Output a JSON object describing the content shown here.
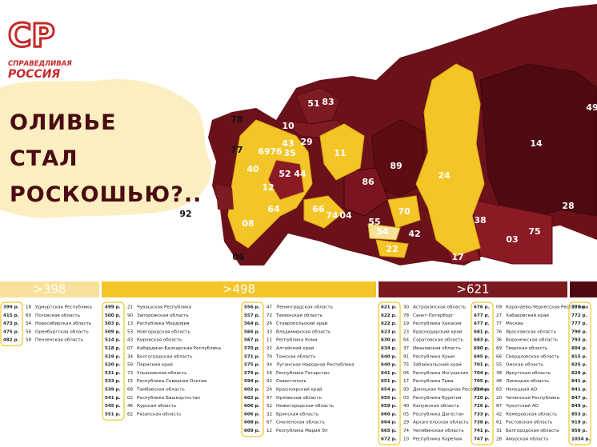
{
  "logo": {
    "mark": "СР",
    "line1": "СПРАВЕДЛИВАЯ",
    "line2": "РОССИЯ"
  },
  "headline": [
    "ОЛИВЬЕ",
    "СТАЛ",
    "РОСКОШЬЮ?.."
  ],
  "map": {
    "labels": [
      "51",
      "10",
      "29",
      "83",
      "78",
      "77",
      "69",
      "76",
      "35",
      "11",
      "89",
      "86",
      "24",
      "14",
      "49",
      "28",
      "92",
      "06",
      "74",
      "04",
      "55",
      "70",
      "54",
      "42",
      "22",
      "38",
      "03",
      "75",
      "17",
      "66",
      "44",
      "52",
      "40",
      "08",
      "64",
      "43",
      "12"
    ]
  },
  "groups": [
    {
      "header": ">398",
      "color": "#f7e19a",
      "columns": [
        [
          {
            "price": "399 р.",
            "code": "18",
            "name": "Удмуртская Республика"
          },
          {
            "price": "415 р.",
            "code": "60",
            "name": "Псковская область"
          },
          {
            "price": "473 р.",
            "code": "54",
            "name": "Новосибирская область"
          },
          {
            "price": "475 р.",
            "code": "56",
            "name": "Оренбургская область"
          },
          {
            "price": "482 р.",
            "code": "58",
            "name": "Пензенская область"
          }
        ]
      ]
    },
    {
      "header": ">498",
      "color": "#f3c526",
      "columns": [
        [
          {
            "price": "499 р.",
            "code": "21",
            "name": "Чувашская Республика"
          },
          {
            "price": "500 р.",
            "code": "90",
            "name": "Запорожская область"
          },
          {
            "price": "503 р.",
            "code": "13",
            "name": "Республика Мордовия"
          },
          {
            "price": "509 р.",
            "code": "53",
            "name": "Новгородская область"
          },
          {
            "price": "514 р.",
            "code": "43",
            "name": "Кировская область"
          },
          {
            "price": "518 р.",
            "code": "07",
            "name": "Кабардино-Балкарская Республика"
          },
          {
            "price": "519 р.",
            "code": "34",
            "name": "Волгоградская область"
          },
          {
            "price": "520 р.",
            "code": "59",
            "name": "Пермский край"
          },
          {
            "price": "531 р.",
            "code": "73",
            "name": "Ульяновская область"
          },
          {
            "price": "533 р.",
            "code": "15",
            "name": "Республика Северная Осетия"
          },
          {
            "price": "539 р.",
            "code": "68",
            "name": "Тамбовская область"
          },
          {
            "price": "541 р.",
            "code": "02",
            "name": "Республика Башкортостан"
          },
          {
            "price": "545 р.",
            "code": "46",
            "name": "Курская область"
          },
          {
            "price": "551 р.",
            "code": "62",
            "name": "Рязанская область"
          }
        ],
        [
          {
            "price": "556 р.",
            "code": "47",
            "name": "Ленинградская область"
          },
          {
            "price": "557 р.",
            "code": "72",
            "name": "Тюменская область"
          },
          {
            "price": "564 р.",
            "code": "26",
            "name": "Ставропольский край"
          },
          {
            "price": "566 р.",
            "code": "33",
            "name": "Владимирская область"
          },
          {
            "price": "567 р.",
            "code": "11",
            "name": "Республика Коми"
          },
          {
            "price": "570 р.",
            "code": "22",
            "name": "Алтайский край"
          },
          {
            "price": "571 р.",
            "code": "70",
            "name": "Томская область"
          },
          {
            "price": "575 р.",
            "code": "94",
            "name": "Луганская Народная Республика"
          },
          {
            "price": "579 р.",
            "code": "16",
            "name": "Республика Татарстан"
          },
          {
            "price": "594 р.",
            "code": "92",
            "name": "Севастополь"
          },
          {
            "price": "602 р.",
            "code": "24",
            "name": "Красноярский край"
          },
          {
            "price": "602 р.",
            "code": "57",
            "name": "Орловская область"
          },
          {
            "price": "606 р.",
            "code": "52",
            "name": "Нижегородская область"
          },
          {
            "price": "606 р.",
            "code": "32",
            "name": "Брянская область"
          },
          {
            "price": "608 р.",
            "code": "67",
            "name": "Смоленская область"
          },
          {
            "price": "609 р.",
            "code": "12",
            "name": "Республика Марий Эл"
          }
        ]
      ]
    },
    {
      "header": ">621",
      "color": "#7a1a20",
      "columns": [
        [
          {
            "price": "621 р.",
            "code": "30",
            "name": "Астраханская область"
          },
          {
            "price": "622 р.",
            "code": "78",
            "name": "Санкт-Петербург"
          },
          {
            "price": "622 р.",
            "code": "19",
            "name": "Республика Хакасия"
          },
          {
            "price": "623 р.",
            "code": "23",
            "name": "Краснодарский край"
          },
          {
            "price": "630 р.",
            "code": "64",
            "name": "Саратовская область"
          },
          {
            "price": "634 р.",
            "code": "37",
            "name": "Ивановская область"
          },
          {
            "price": "640 р.",
            "code": "91",
            "name": "Республика Крым"
          },
          {
            "price": "640 р.",
            "code": "75",
            "name": "Забайкальский край"
          },
          {
            "price": "641 р.",
            "code": "06",
            "name": "Республика Ингушетия"
          },
          {
            "price": "651 р.",
            "code": "17",
            "name": "Республика Тыва"
          },
          {
            "price": "654 р.",
            "code": "93",
            "name": "Донецкая Народная Республика"
          },
          {
            "price": "655 р.",
            "code": "03",
            "name": "Республика Бурятия"
          },
          {
            "price": "659 р.",
            "code": "40",
            "name": "Калужская область"
          },
          {
            "price": "660 р.",
            "code": "05",
            "name": "Республика Дагестан"
          },
          {
            "price": "664 р.",
            "code": "29",
            "name": "Архангельская область"
          },
          {
            "price": "665 р.",
            "code": "74",
            "name": "Челябинская область"
          },
          {
            "price": "672 р.",
            "code": "10",
            "name": "Республика Карелия"
          }
        ],
        [
          {
            "price": "676 р.",
            "code": "09",
            "name": "Карачаево-Черкесская Республика"
          },
          {
            "price": "677 р.",
            "code": "27",
            "name": "Хабаровский край"
          },
          {
            "price": "677 р.",
            "code": "77",
            "name": "Москва"
          },
          {
            "price": "681 р.",
            "code": "76",
            "name": "Ярославская область"
          },
          {
            "price": "683 р.",
            "code": "36",
            "name": "Воронежская область"
          },
          {
            "price": "690 р.",
            "code": "69",
            "name": "Тверская область"
          },
          {
            "price": "695 р.",
            "code": "66",
            "name": "Свердловская область"
          },
          {
            "price": "701 р.",
            "code": "55",
            "name": "Омская область"
          },
          {
            "price": "704 р.",
            "code": "38",
            "name": "Иркутская область"
          },
          {
            "price": "705 р.",
            "code": "48",
            "name": "Липецкая область"
          },
          {
            "price": "714 р.",
            "code": "83",
            "name": "Ненецкий АО"
          },
          {
            "price": "720 р.",
            "code": "20",
            "name": "Чеченская Республика"
          },
          {
            "price": "726 р.",
            "code": "87",
            "name": "Чукотский АО"
          },
          {
            "price": "733 р.",
            "code": "42",
            "name": "Кемеровская область"
          },
          {
            "price": "738 р.",
            "code": "61",
            "name": "Ростовская область"
          },
          {
            "price": "741 р.",
            "code": "31",
            "name": "Белгородская область"
          },
          {
            "price": "747 р.",
            "code": "28",
            "name": "Амурская область"
          }
        ]
      ]
    },
    {
      "color": "#4e0a10",
      "columns": [
        [
          {
            "price": "770 р."
          },
          {
            "price": "772 р."
          },
          {
            "price": "777 р."
          },
          {
            "price": "790 р."
          },
          {
            "price": "793 р."
          },
          {
            "price": "804 р."
          },
          {
            "price": "815 р."
          },
          {
            "price": "825 р."
          },
          {
            "price": "829 р."
          },
          {
            "price": "841 р."
          },
          {
            "price": "841 р."
          },
          {
            "price": "847 р."
          },
          {
            "price": "849 р."
          },
          {
            "price": "853 р."
          },
          {
            "price": "919 р."
          },
          {
            "price": "959 р."
          },
          {
            "price": "1034 р."
          }
        ]
      ]
    }
  ]
}
